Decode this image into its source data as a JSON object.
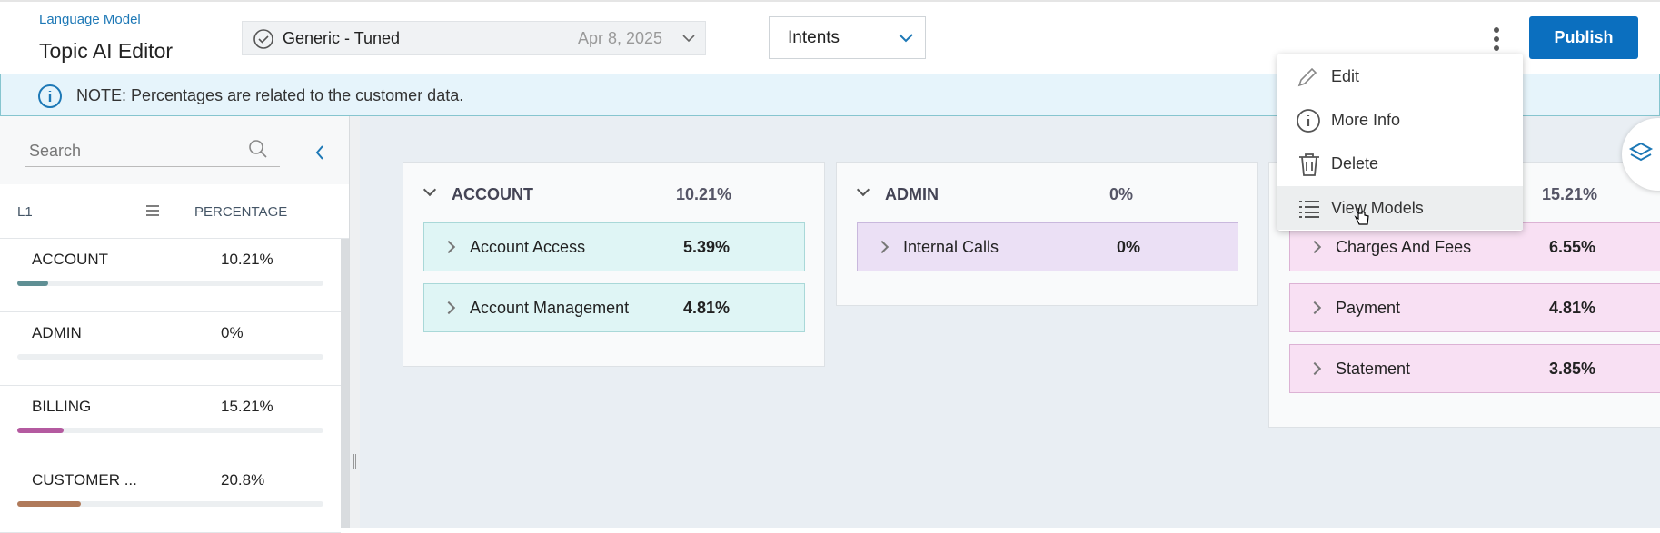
{
  "header": {
    "breadcrumb": "Language Model",
    "title": "Topic AI Editor",
    "model_select": {
      "name": "Generic - Tuned",
      "date": "Apr 8, 2025"
    },
    "view_select": "Intents",
    "publish": "Publish"
  },
  "note": "NOTE: Percentages are related to the customer data.",
  "sidebar": {
    "search_placeholder": "Search",
    "columns": [
      "L1",
      "PERCENTAGE"
    ],
    "rows": [
      {
        "name": "ACCOUNT",
        "percent": "10.21%",
        "color": "#5f8f94"
      },
      {
        "name": "ADMIN",
        "percent": "0%",
        "color": "#8a6fb0"
      },
      {
        "name": "BILLING",
        "percent": "15.21%",
        "color": "#b45aa0"
      },
      {
        "name": "CUSTOMER ...",
        "percent": "20.8%",
        "color": "#b07a5a"
      }
    ]
  },
  "cards": [
    {
      "name": "ACCOUNT",
      "percent": "10.21%",
      "items": [
        {
          "name": "Account Access",
          "percent": "5.39%"
        },
        {
          "name": "Account Management",
          "percent": "4.81%"
        }
      ]
    },
    {
      "name": "ADMIN",
      "percent": "0%",
      "items": [
        {
          "name": "Internal Calls",
          "percent": "0%"
        }
      ]
    },
    {
      "percent": "15.21%",
      "items": [
        {
          "name": "Charges And Fees",
          "percent": "6.55%"
        },
        {
          "name": "Payment",
          "percent": "4.81%"
        },
        {
          "name": "Statement",
          "percent": "3.85%"
        }
      ]
    }
  ],
  "menu": [
    "Edit",
    "More Info",
    "Delete",
    "View Models"
  ]
}
